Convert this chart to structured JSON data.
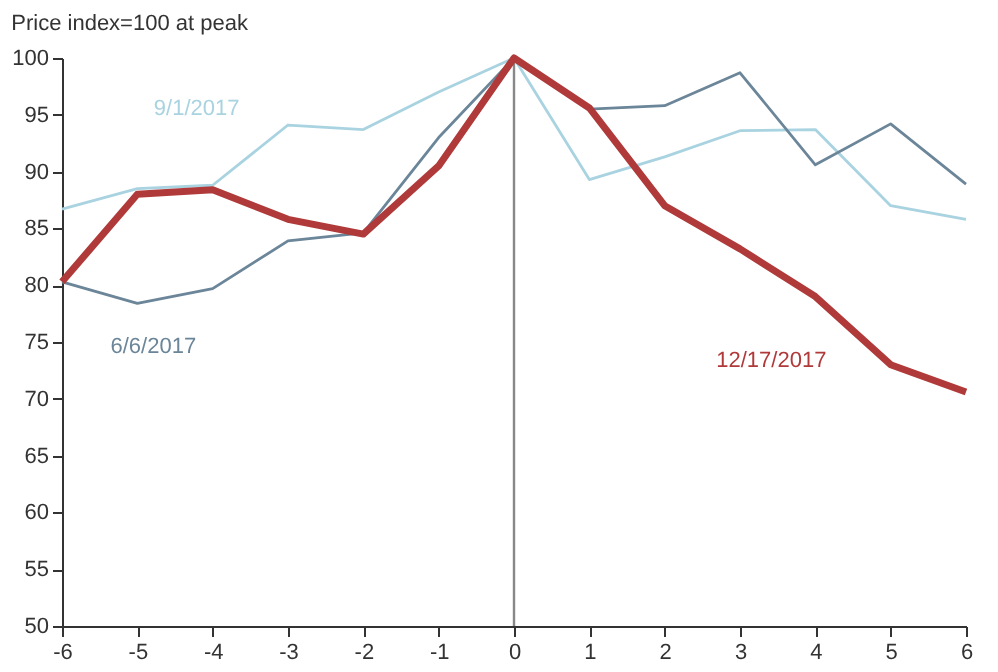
{
  "chart_data": {
    "type": "line",
    "title": "Price index=100 at peak",
    "x": [
      -6,
      -5,
      -4,
      -3,
      -2,
      -1,
      0,
      1,
      2,
      3,
      4,
      5,
      6
    ],
    "series": [
      {
        "name": "9/1/2017",
        "color": "#a9d3e0",
        "values": [
          86.7,
          88.5,
          88.8,
          94.1,
          93.7,
          97,
          100,
          89.3,
          91.3,
          93.6,
          93.7,
          87,
          85.8
        ]
      },
      {
        "name": "6/6/2017",
        "color": "#6b8599",
        "values": [
          80.3,
          78.4,
          79.7,
          83.9,
          84.6,
          93,
          100,
          95.5,
          95.8,
          98.7,
          90.6,
          94.2,
          88.9
        ]
      },
      {
        "name": "12/17/2017",
        "color": "#b03a3a",
        "values": [
          80.3,
          88,
          88.4,
          85.8,
          84.5,
          90.5,
          100,
          95.6,
          87,
          83.2,
          79,
          73,
          70.6
        ]
      }
    ],
    "xlim": [
      -6,
      6
    ],
    "xticks": [
      -6,
      -5,
      -4,
      -3,
      -2,
      -1,
      0,
      1,
      2,
      3,
      4,
      5,
      6
    ],
    "ylim": [
      50,
      100
    ],
    "yticks": [
      50,
      55,
      60,
      65,
      70,
      75,
      80,
      85,
      90,
      95,
      100
    ],
    "ref_lines": [
      {
        "axis": "x",
        "value": 0,
        "color": "#888888"
      }
    ],
    "grid": false,
    "marker": "none",
    "line_style": "solid"
  }
}
